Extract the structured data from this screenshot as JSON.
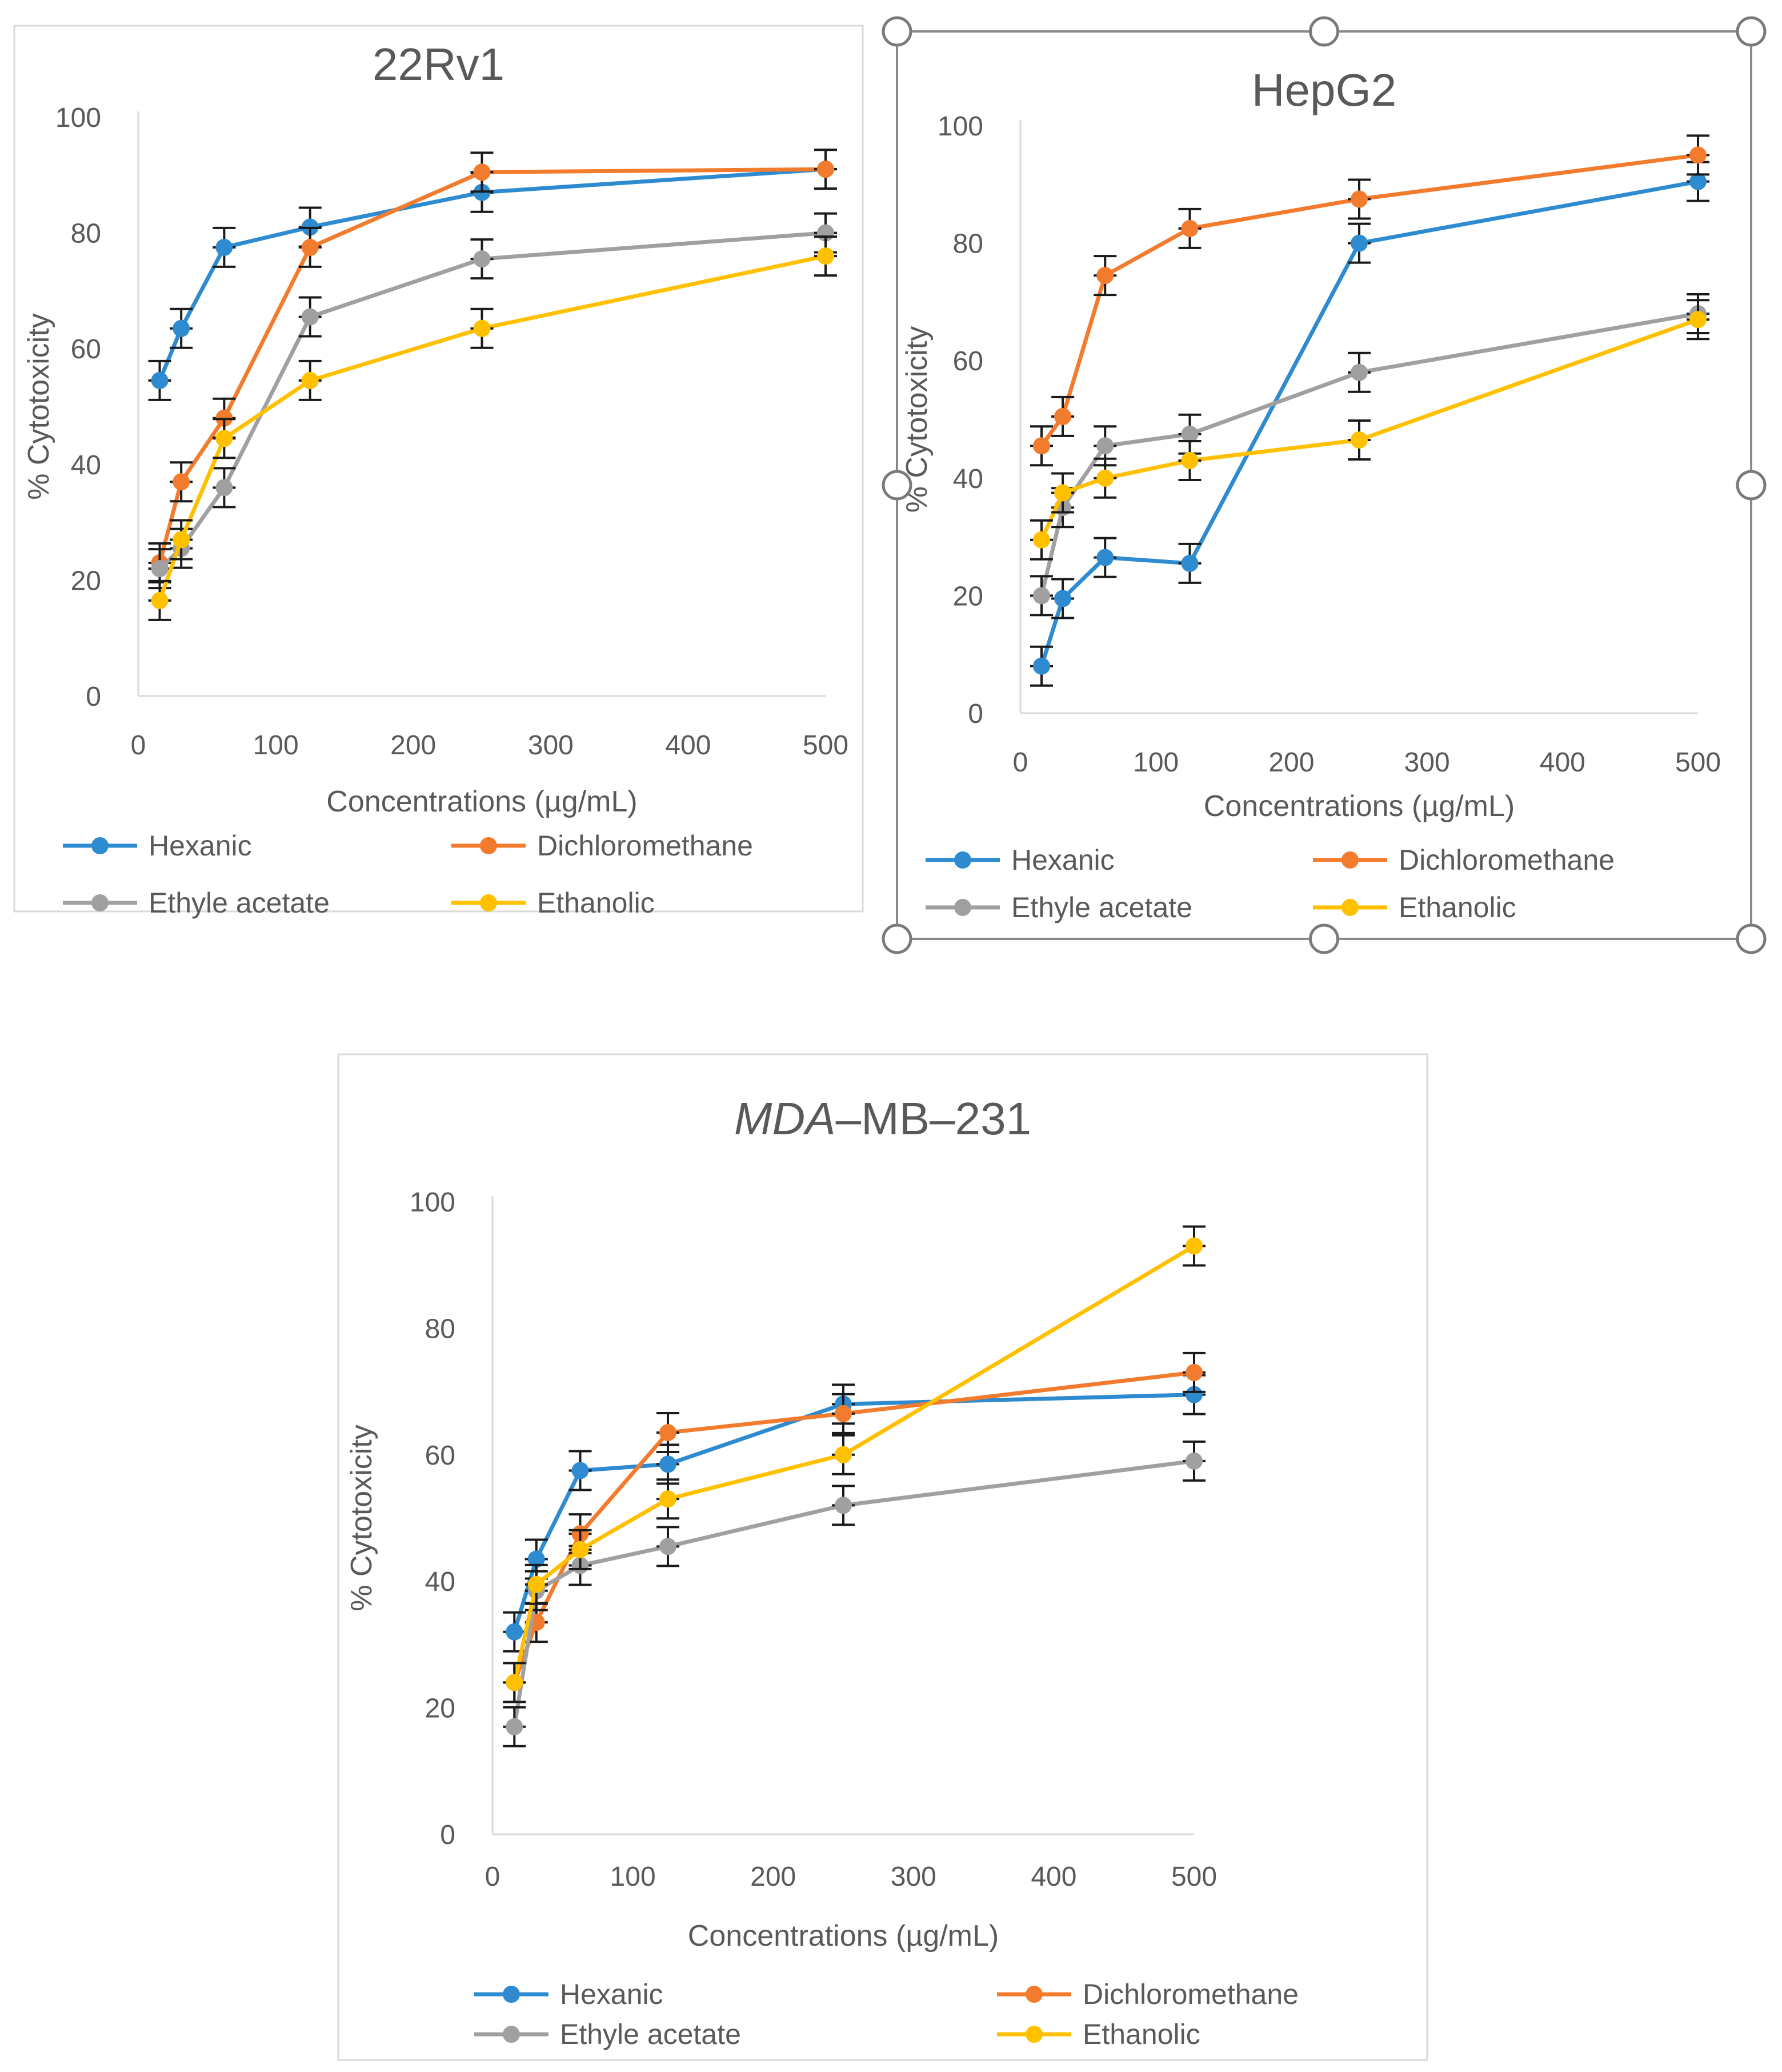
{
  "chart_data": [
    {
      "type": "line",
      "title": "22Rv1",
      "xlabel": "Concentrations (µg/mL)",
      "ylabel": "% Cytotoxicity",
      "xlim": [
        0,
        500
      ],
      "ylim": [
        0,
        100
      ],
      "xticks": [
        "0",
        "100",
        "200",
        "300",
        "400",
        "500"
      ],
      "yticks": [
        "0",
        "20",
        "40",
        "60",
        "80",
        "100"
      ],
      "x": [
        15.6,
        31.25,
        62.5,
        125,
        250,
        500
      ],
      "error_bars": true,
      "legend_position": "bottom",
      "series": [
        {
          "name": "Hexanic",
          "color": "#2E8BD0",
          "values": [
            54.5,
            63.5,
            77.5,
            81,
            87,
            91
          ]
        },
        {
          "name": "Dichloromethane",
          "color": "#F27B2E",
          "values": [
            23,
            37,
            48,
            77.5,
            90.5,
            91
          ]
        },
        {
          "name": "Ethyle acetate",
          "color": "#A0A0A0",
          "values": [
            22,
            25.5,
            36,
            65.5,
            75.5,
            80
          ]
        },
        {
          "name": "Ethanolic",
          "color": "#FFC000",
          "values": [
            16.5,
            27,
            44.5,
            54.5,
            63.5,
            76
          ]
        }
      ]
    },
    {
      "type": "line",
      "title": "HepG2",
      "xlabel": "Concentrations (µg/mL)",
      "ylabel": "% Cytotoxicity",
      "xlim": [
        0,
        500
      ],
      "ylim": [
        0,
        100
      ],
      "xticks": [
        "0",
        "100",
        "200",
        "300",
        "400",
        "500"
      ],
      "yticks": [
        "0",
        "20",
        "40",
        "60",
        "80",
        "100"
      ],
      "x": [
        15.6,
        31.25,
        62.5,
        125,
        250,
        500
      ],
      "error_bars": true,
      "legend_position": "bottom",
      "series": [
        {
          "name": "Hexanic",
          "color": "#2E8BD0",
          "values": [
            8,
            19.5,
            26.5,
            25.5,
            80,
            90.5
          ]
        },
        {
          "name": "Dichloromethane",
          "color": "#F27B2E",
          "values": [
            45.5,
            50.5,
            74.5,
            82.5,
            87.5,
            95
          ]
        },
        {
          "name": "Ethyle acetate",
          "color": "#A0A0A0",
          "values": [
            20,
            35,
            45.5,
            47.5,
            58,
            68
          ]
        },
        {
          "name": "Ethanolic",
          "color": "#FFC000",
          "values": [
            29.5,
            37.5,
            40,
            43,
            46.5,
            67
          ]
        }
      ]
    },
    {
      "type": "line",
      "title": "MDA–MB–231",
      "title_italic_part": "MDA",
      "title_rest": "–MB–231",
      "xlabel": "Concentrations (µg/mL)",
      "ylabel": "% Cytotoxicity",
      "xlim": [
        0,
        500
      ],
      "ylim": [
        0,
        100
      ],
      "xticks": [
        "0",
        "100",
        "200",
        "300",
        "400",
        "500"
      ],
      "yticks": [
        "0",
        "20",
        "40",
        "60",
        "80",
        "100"
      ],
      "x": [
        15.6,
        31.25,
        62.5,
        125,
        250,
        500
      ],
      "error_bars": true,
      "legend_position": "bottom",
      "series": [
        {
          "name": "Hexanic",
          "color": "#2E8BD0",
          "values": [
            32,
            43.5,
            57.5,
            58.5,
            68,
            69.5
          ]
        },
        {
          "name": "Dichloromethane",
          "color": "#F27B2E",
          "values": [
            24,
            33.5,
            47.5,
            63.5,
            66.5,
            73
          ]
        },
        {
          "name": "Ethyle acetate",
          "color": "#A0A0A0",
          "values": [
            17,
            38.5,
            42.5,
            45.5,
            52,
            59
          ]
        },
        {
          "name": "Ethanolic",
          "color": "#FFC000",
          "values": [
            24,
            39.5,
            45,
            53,
            60,
            93
          ]
        }
      ]
    }
  ]
}
